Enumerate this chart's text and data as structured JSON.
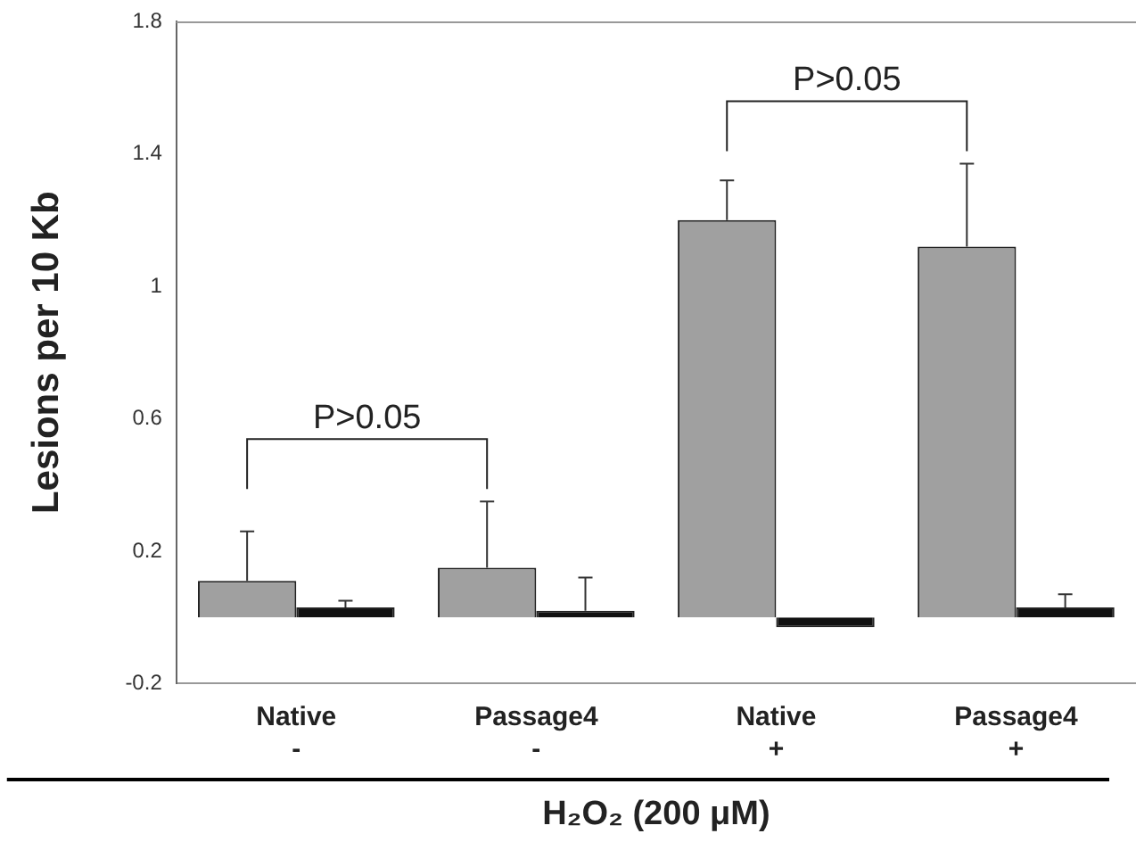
{
  "chart_data": {
    "type": "bar",
    "ylabel": "Lesions per 10 Kb",
    "xlabel": "H₂O₂ (200 μM)",
    "categories": [
      "Native\n-",
      "Passage4\n-",
      "Native\n+",
      "Passage4\n+"
    ],
    "series": [
      {
        "color": "#a0a0a0",
        "values": [
          0.11,
          0.15,
          1.2,
          1.12
        ],
        "errors": [
          0.15,
          0.2,
          0.12,
          0.25
        ]
      },
      {
        "color": "#111111",
        "values": [
          0.03,
          0.02,
          -0.03,
          0.03
        ],
        "errors": [
          0.02,
          0.1,
          null,
          0.04
        ]
      }
    ],
    "ylim": [
      -0.2,
      1.8
    ],
    "yticks": [
      -0.2,
      0.2,
      0.6,
      1,
      1.4,
      1.8
    ],
    "annotations": [
      "P>0.05",
      "P>0.05"
    ],
    "grid": false,
    "legend": false
  }
}
